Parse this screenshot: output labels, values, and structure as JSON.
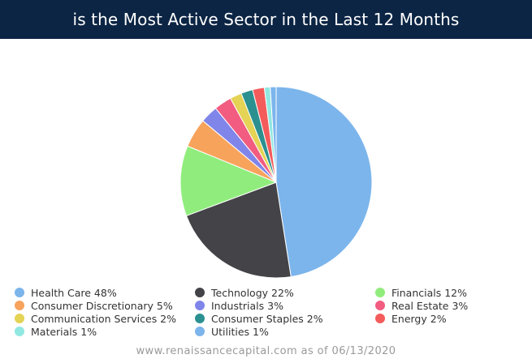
{
  "header": {
    "title": "is the Most Active Sector in the Last 12 Months"
  },
  "chart_data": {
    "type": "pie",
    "title": "is the Most Active Sector in the Last 12 Months",
    "legend_position": "bottom",
    "categories": [
      "Health Care",
      "Technology",
      "Financials",
      "Consumer Discretionary",
      "Industrials",
      "Real Estate",
      "Communication Services",
      "Consumer Staples",
      "Energy",
      "Materials",
      "Utilities"
    ],
    "values": [
      48,
      22,
      12,
      5,
      3,
      3,
      2,
      2,
      2,
      1,
      1
    ],
    "legend_labels": [
      "Health Care 48%",
      "Technology 22%",
      "Financials 12%",
      "Consumer Discretionary 5%",
      "Industrials 3%",
      "Real Estate 3%",
      "Communication Services 2%",
      "Consumer Staples 2%",
      "Energy 2%",
      "Materials 1%",
      "Utilities 1%"
    ],
    "colors": [
      "#7cb5ec",
      "#434348",
      "#90ed7d",
      "#f7a35c",
      "#8085e9",
      "#f15c80",
      "#e4d354",
      "#2b908f",
      "#f45b5b",
      "#91e8e1",
      "#7cb5ec"
    ]
  },
  "footer": {
    "source": "www.renaissancecapital.com as of 06/13/2020"
  }
}
